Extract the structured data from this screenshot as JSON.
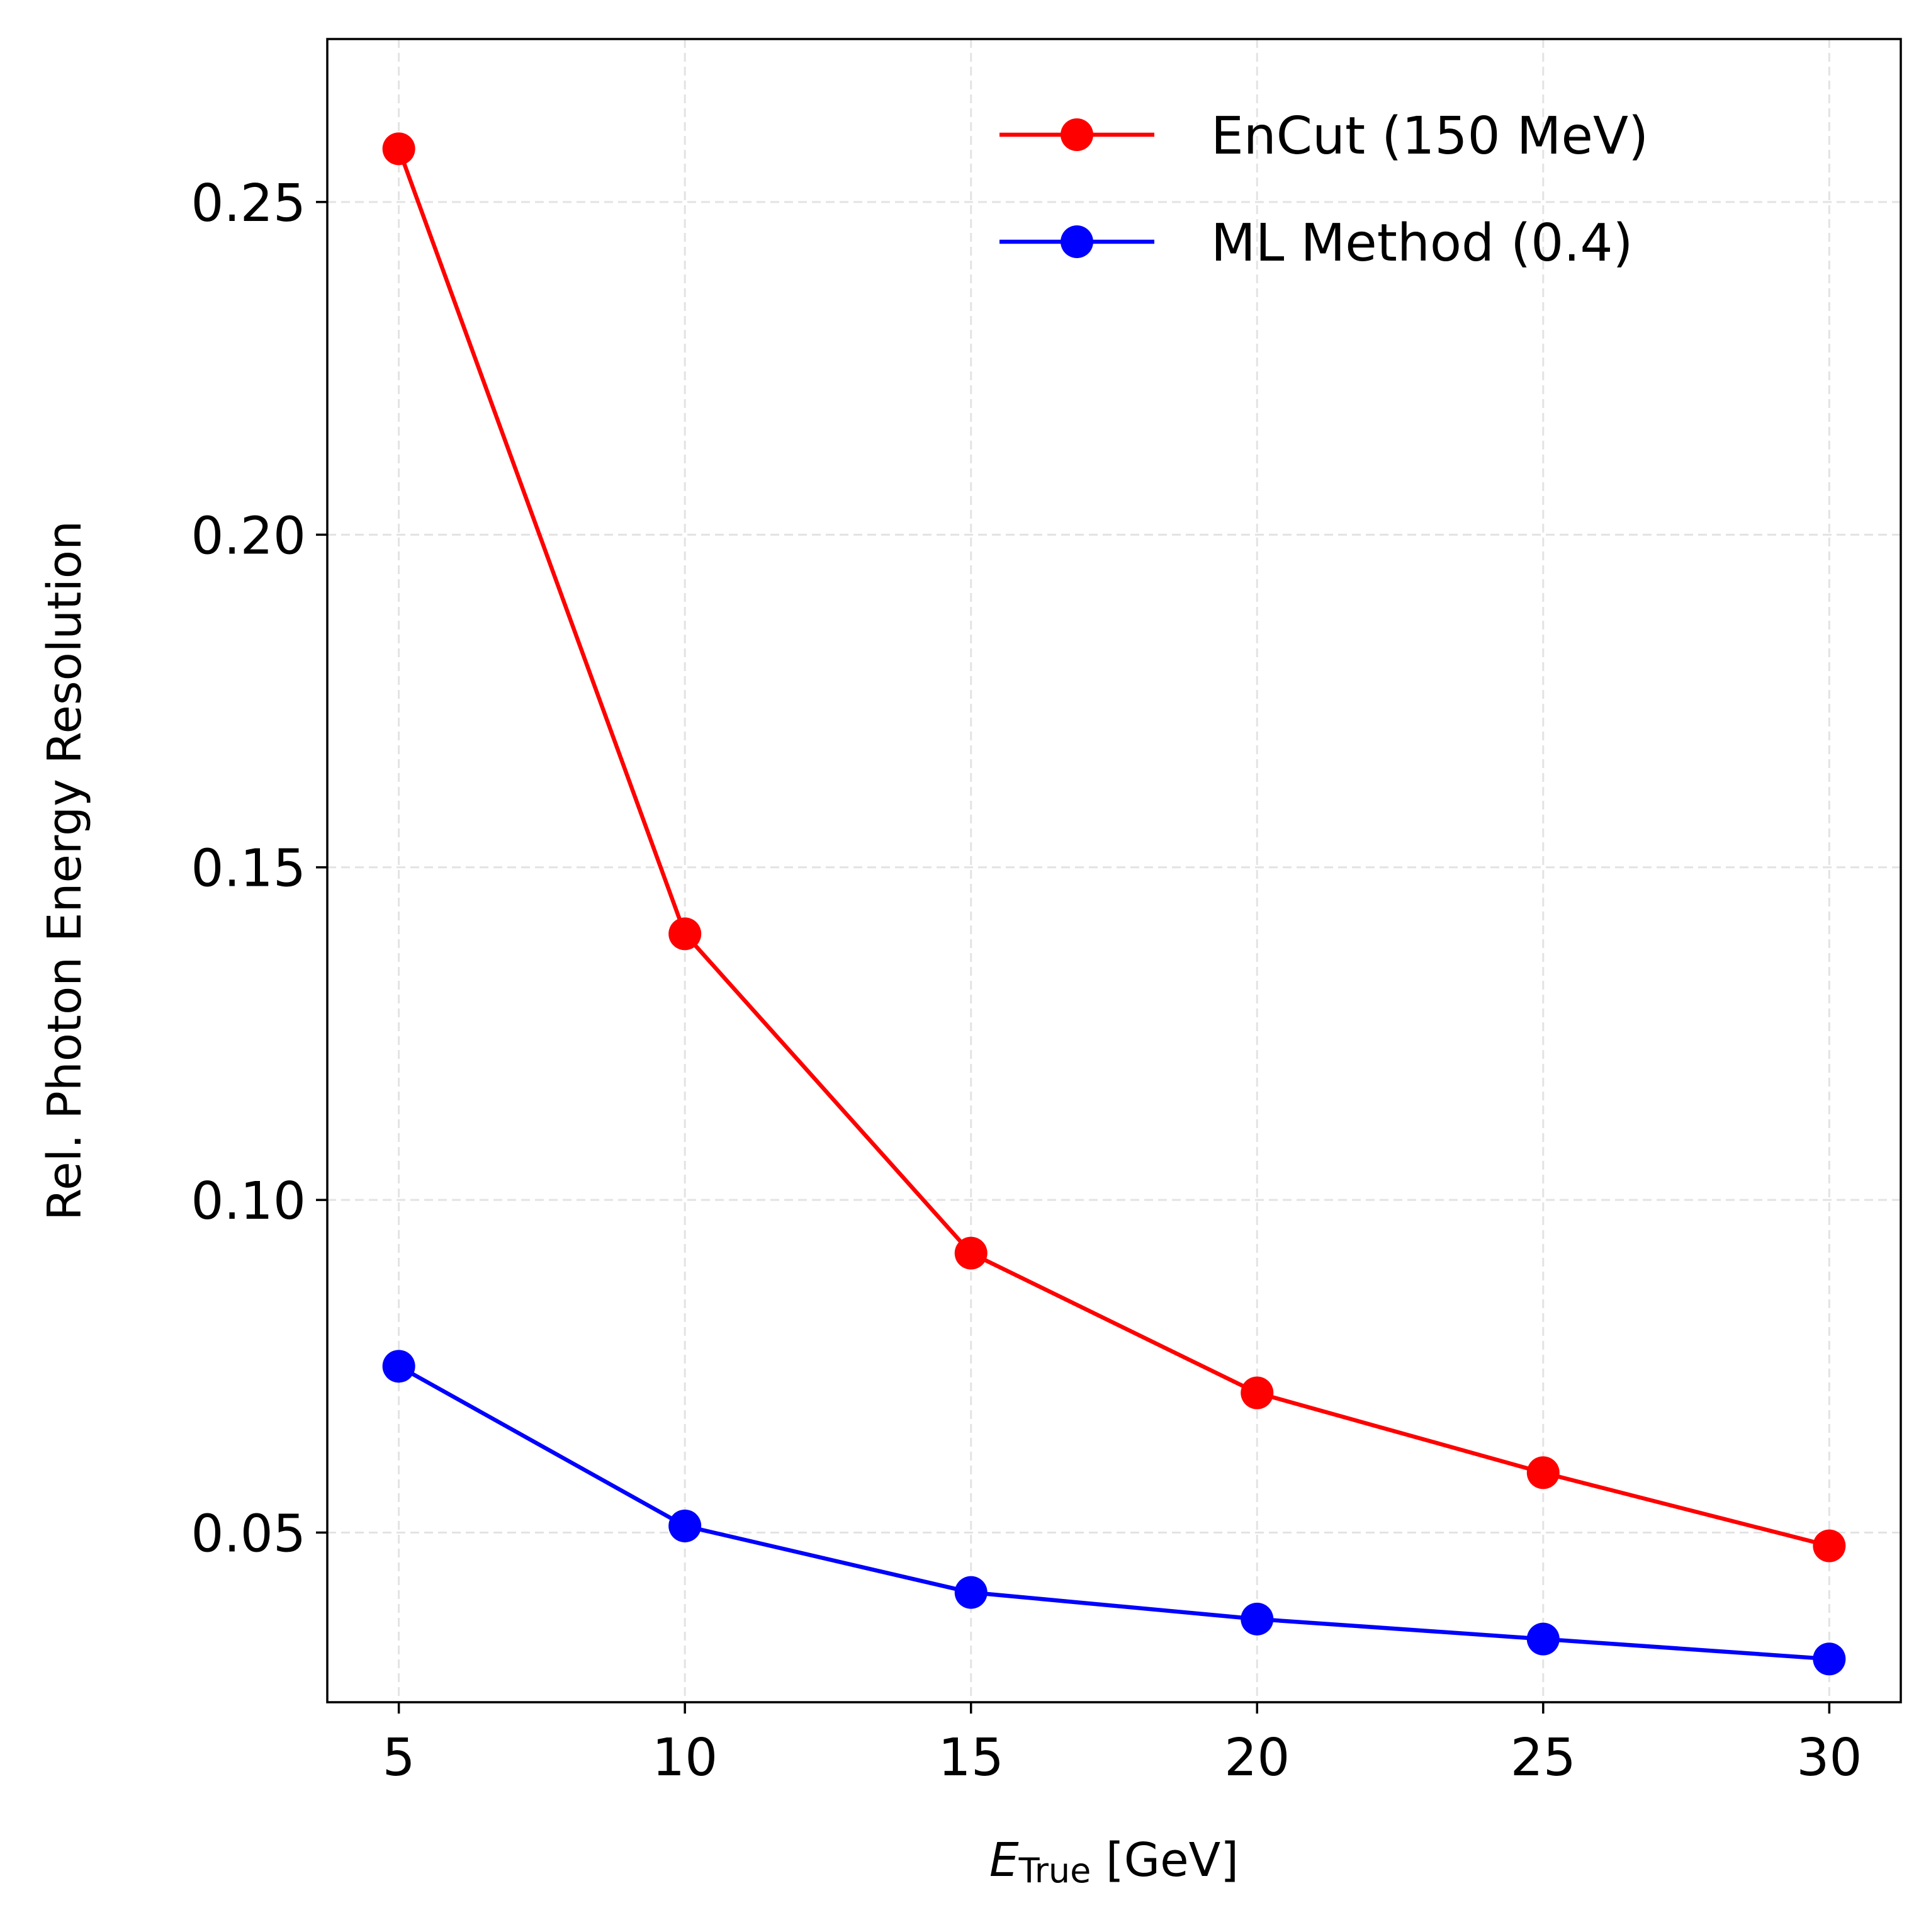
{
  "chart_data": {
    "type": "line",
    "title": "",
    "xlabel": {
      "main": "E",
      "subscript": "True",
      "unit": " [GeV]"
    },
    "ylabel": "Rel. Photon Energy Resolution",
    "x": [
      5,
      10,
      15,
      20,
      25,
      30
    ],
    "xticks": [
      5,
      10,
      15,
      20,
      25,
      30
    ],
    "xtick_labels": [
      "5",
      "10",
      "15",
      "20",
      "25",
      "30"
    ],
    "yticks": [
      0.05,
      0.1,
      0.15,
      0.2,
      0.25
    ],
    "ytick_labels": [
      "0.05",
      "0.10",
      "0.15",
      "0.20",
      "0.25"
    ],
    "xlim": [
      3.75,
      31.25
    ],
    "ylim": [
      0.0245,
      0.2745
    ],
    "grid": true,
    "legend_position": "top-right",
    "series": [
      {
        "name": "EnCut (150 MeV)",
        "color": "#ff0000",
        "marker": "circle",
        "values": [
          0.258,
          0.14,
          0.092,
          0.071,
          0.059,
          0.048
        ]
      },
      {
        "name": "ML Method (0.4)",
        "color": "#0000ff",
        "marker": "circle",
        "values": [
          0.075,
          0.051,
          0.041,
          0.037,
          0.034,
          0.031
        ]
      }
    ]
  }
}
